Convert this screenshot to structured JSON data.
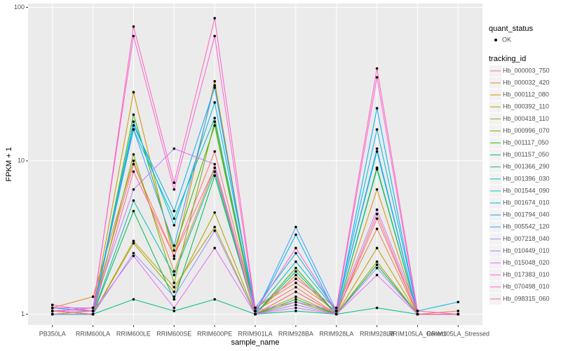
{
  "chart_data": {
    "type": "line",
    "x_label": "sample_name",
    "y_label": "FPKM + 1",
    "log_y": true,
    "grid": true,
    "ylim": [
      0.85,
      106
    ],
    "yticks": [
      1,
      10,
      100
    ],
    "categories": [
      "PB350LA",
      "RRIM600LA",
      "RRIM600LE",
      "RRIM600SE",
      "RRIM600PE",
      "RRIM901LA",
      "RRIM928BA",
      "RRIM928LA",
      "RRIM928LB",
      "RRIM105LA_Control",
      "RRIM105LA_Stressed"
    ],
    "point_legend": {
      "title": "quant_status",
      "labels": [
        "OK"
      ]
    },
    "legend_title": "tracking_id",
    "series": [
      {
        "name": "Hb_000003_750",
        "color": "#F8766D",
        "values": [
          1.05,
          1.1,
          9.5,
          2.4,
          11.5,
          1.05,
          1.5,
          1.0,
          4.5,
          1.0,
          1.0
        ]
      },
      {
        "name": "Hb_000032_420",
        "color": "#EA8331",
        "values": [
          1.1,
          1.3,
          10,
          1.9,
          9,
          1.1,
          1.6,
          1.05,
          3.6,
          1.0,
          1.05
        ]
      },
      {
        "name": "Hb_000112_080",
        "color": "#D89000",
        "values": [
          1.0,
          1.05,
          28,
          2.3,
          33,
          1.0,
          1.8,
          1.0,
          6.5,
          1.0,
          1.0
        ]
      },
      {
        "name": "Hb_000392_110",
        "color": "#C09B00",
        "values": [
          1.05,
          1.0,
          3,
          1.5,
          3.7,
          1.0,
          1.3,
          1.0,
          2.7,
          1.0,
          1.0
        ]
      },
      {
        "name": "Hb_000418_110",
        "color": "#A3A500",
        "values": [
          1.0,
          1.0,
          2.9,
          1.4,
          4.6,
          1.0,
          1.2,
          1.0,
          2.2,
          1.0,
          1.0
        ]
      },
      {
        "name": "Hb_000996_070",
        "color": "#7CAE00",
        "values": [
          1.0,
          1.0,
          11,
          1.6,
          18,
          1.0,
          1.4,
          1.0,
          9,
          1.0,
          1.0
        ]
      },
      {
        "name": "Hb_001117_050",
        "color": "#39B600",
        "values": [
          1.05,
          1.0,
          20,
          2.6,
          17,
          1.0,
          2.0,
          1.0,
          9,
          1.0,
          1.0
        ]
      },
      {
        "name": "Hb_001157_050",
        "color": "#00BB4E",
        "values": [
          1.0,
          1.0,
          4.7,
          1.25,
          8,
          1.0,
          1.25,
          1.0,
          2.1,
          1.0,
          1.0
        ]
      },
      {
        "name": "Hb_001366_290",
        "color": "#00BF7D",
        "values": [
          1.0,
          1.0,
          1.25,
          1.05,
          1.25,
          1.0,
          1.05,
          1.0,
          1.1,
          1.0,
          1.0
        ]
      },
      {
        "name": "Hb_001396_030",
        "color": "#00C1A3",
        "values": [
          1.0,
          1.0,
          5.5,
          1.8,
          8.5,
          1.0,
          1.9,
          1.0,
          8.8,
          1.0,
          1.0
        ]
      },
      {
        "name": "Hb_001544_090",
        "color": "#00BFC4",
        "values": [
          1.1,
          1.05,
          16,
          4.2,
          19,
          1.05,
          2.2,
          1.05,
          11.5,
          1.0,
          1.0
        ]
      },
      {
        "name": "Hb_001674_010",
        "color": "#00BAE0",
        "values": [
          1.05,
          1.05,
          18,
          3.8,
          24,
          1.1,
          2.5,
          1.05,
          16,
          1.05,
          1.2
        ]
      },
      {
        "name": "Hb_001794_040",
        "color": "#00B0F6",
        "values": [
          1.05,
          1.0,
          17,
          4.7,
          30,
          1.0,
          3.3,
          1.0,
          22,
          1.0,
          1.0
        ]
      },
      {
        "name": "Hb_005542_120",
        "color": "#35A2FF",
        "values": [
          1.1,
          1.05,
          16,
          2.8,
          31,
          1.0,
          3.7,
          1.05,
          12,
          1.0,
          1.0
        ]
      },
      {
        "name": "Hb_007218_040",
        "color": "#9590FF",
        "values": [
          1.0,
          1.0,
          2.5,
          1.3,
          3.5,
          1.0,
          1.15,
          1.0,
          2.0,
          1.0,
          1.0
        ]
      },
      {
        "name": "Hb_010449_010",
        "color": "#C77CFF",
        "values": [
          1.1,
          1.1,
          6.5,
          12,
          9.5,
          1.05,
          1.2,
          1.05,
          4.8,
          1.05,
          1.0
        ]
      },
      {
        "name": "Hb_015048_020",
        "color": "#E76BF3",
        "values": [
          1.05,
          1.05,
          2.4,
          1.1,
          2.7,
          1.0,
          1.1,
          1.0,
          1.8,
          1.0,
          1.0
        ]
      },
      {
        "name": "Hb_017383_010",
        "color": "#FA62DB",
        "values": [
          1.05,
          1.1,
          65,
          6.5,
          65,
          1.05,
          2.7,
          1.05,
          35,
          1.0,
          1.0
        ]
      },
      {
        "name": "Hb_070498_010",
        "color": "#FF62BC",
        "values": [
          1.15,
          1.05,
          75,
          7.2,
          85,
          1.1,
          1.7,
          1.1,
          40,
          1.05,
          1.0
        ]
      },
      {
        "name": "Hb_098315_060",
        "color": "#FF6C91",
        "values": [
          1.05,
          1.0,
          8.5,
          2.4,
          9,
          1.0,
          1.4,
          1.0,
          4.2,
          1.0,
          1.0
        ]
      }
    ]
  }
}
